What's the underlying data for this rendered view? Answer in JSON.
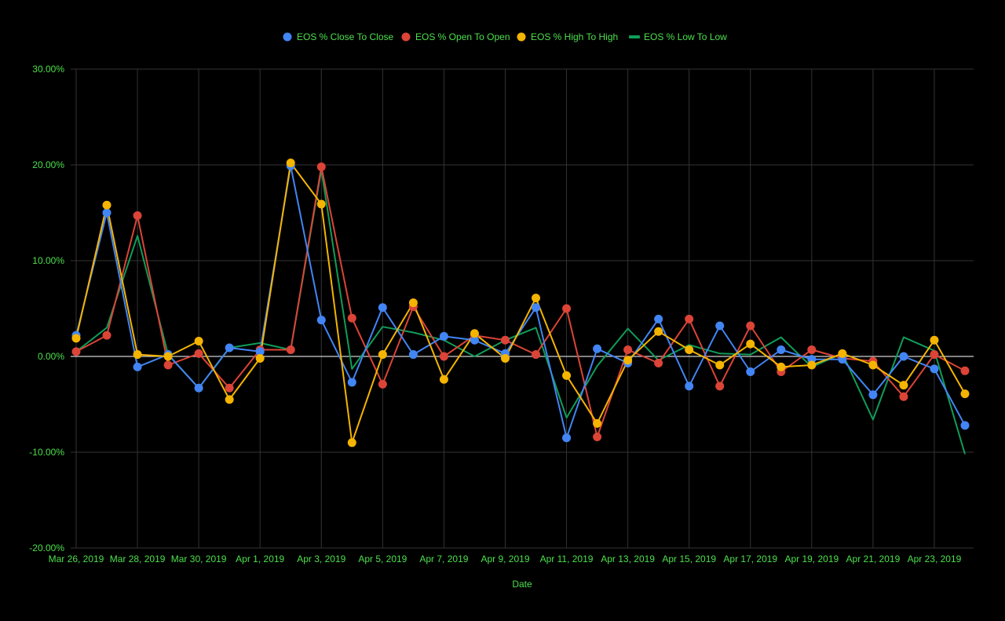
{
  "chart_data": {
    "type": "line",
    "title": "",
    "xlabel": "Date",
    "ylabel": "",
    "ylim": [
      -20,
      30
    ],
    "y_ticks": [
      "-20.00%",
      "-10.00%",
      "0.00%",
      "10.00%",
      "20.00%",
      "30.00%"
    ],
    "y_tick_values": [
      -20,
      -10,
      0,
      10,
      20,
      30
    ],
    "x_ticks": [
      "Mar 26, 2019",
      "Mar 28, 2019",
      "Mar 30, 2019",
      "Apr 1, 2019",
      "Apr 3, 2019",
      "Apr 5, 2019",
      "Apr 7, 2019",
      "Apr 9, 2019",
      "Apr 11, 2019",
      "Apr 13, 2019",
      "Apr 15, 2019",
      "Apr 17, 2019",
      "Apr 19, 2019",
      "Apr 21, 2019",
      "Apr 23, 2019"
    ],
    "x": [
      "Mar 26, 2019",
      "Mar 27, 2019",
      "Mar 28, 2019",
      "Mar 29, 2019",
      "Mar 30, 2019",
      "Mar 31, 2019",
      "Apr 1, 2019",
      "Apr 2, 2019",
      "Apr 3, 2019",
      "Apr 4, 2019",
      "Apr 5, 2019",
      "Apr 6, 2019",
      "Apr 7, 2019",
      "Apr 8, 2019",
      "Apr 9, 2019",
      "Apr 10, 2019",
      "Apr 11, 2019",
      "Apr 12, 2019",
      "Apr 13, 2019",
      "Apr 14, 2019",
      "Apr 15, 2019",
      "Apr 16, 2019",
      "Apr 17, 2019",
      "Apr 18, 2019",
      "Apr 19, 2019",
      "Apr 20, 2019",
      "Apr 21, 2019",
      "Apr 22, 2019",
      "Apr 23, 2019",
      "Apr 24, 2019"
    ],
    "grid": true,
    "legend_position": "top",
    "series": [
      {
        "name": "EOS % Close To Close",
        "color": "#4285f4",
        "markers": true,
        "values": [
          2.2,
          15.0,
          -1.1,
          0.2,
          -3.3,
          0.9,
          0.5,
          19.9,
          3.8,
          -2.7,
          5.1,
          0.2,
          2.1,
          1.7,
          0.3,
          5.1,
          -8.5,
          0.8,
          -0.7,
          3.9,
          -3.1,
          3.2,
          -1.6,
          0.7,
          -0.3,
          -0.3,
          -4.0,
          0.0,
          -1.3,
          -7.2
        ]
      },
      {
        "name": "EOS % Open To Open",
        "color": "#db4437",
        "markers": true,
        "values": [
          0.5,
          2.2,
          14.7,
          -0.9,
          0.3,
          -3.3,
          0.7,
          0.7,
          19.8,
          4.0,
          -2.9,
          5.2,
          0.0,
          2.2,
          1.7,
          0.2,
          5.0,
          -8.4,
          0.7,
          -0.7,
          3.9,
          -3.1,
          3.2,
          -1.6,
          0.7,
          -0.2,
          -0.5,
          -4.2,
          0.2,
          -1.5
        ]
      },
      {
        "name": "EOS % High To High",
        "color": "#f4b400",
        "markers": true,
        "values": [
          1.9,
          15.8,
          0.2,
          0.0,
          1.6,
          -4.5,
          -0.2,
          20.2,
          15.9,
          -9.0,
          0.2,
          5.6,
          -2.4,
          2.4,
          -0.2,
          6.1,
          -2.0,
          -7.0,
          -0.4,
          2.6,
          0.7,
          -0.9,
          1.3,
          -1.1,
          -0.9,
          0.3,
          -0.9,
          -3.0,
          1.7,
          -3.9
        ]
      },
      {
        "name": "EOS % Low To Low",
        "color": "#0f9d58",
        "markers": false,
        "values": [
          0.5,
          3.0,
          12.6,
          0.2,
          -3.3,
          0.9,
          1.4,
          0.7,
          19.5,
          -1.3,
          3.1,
          2.5,
          1.7,
          0.0,
          1.7,
          3.0,
          -6.4,
          -1.0,
          2.9,
          -0.4,
          1.2,
          0.3,
          0.2,
          2.0,
          -1.1,
          0.3,
          -6.6,
          2.0,
          0.6,
          -10.2
        ]
      }
    ]
  }
}
